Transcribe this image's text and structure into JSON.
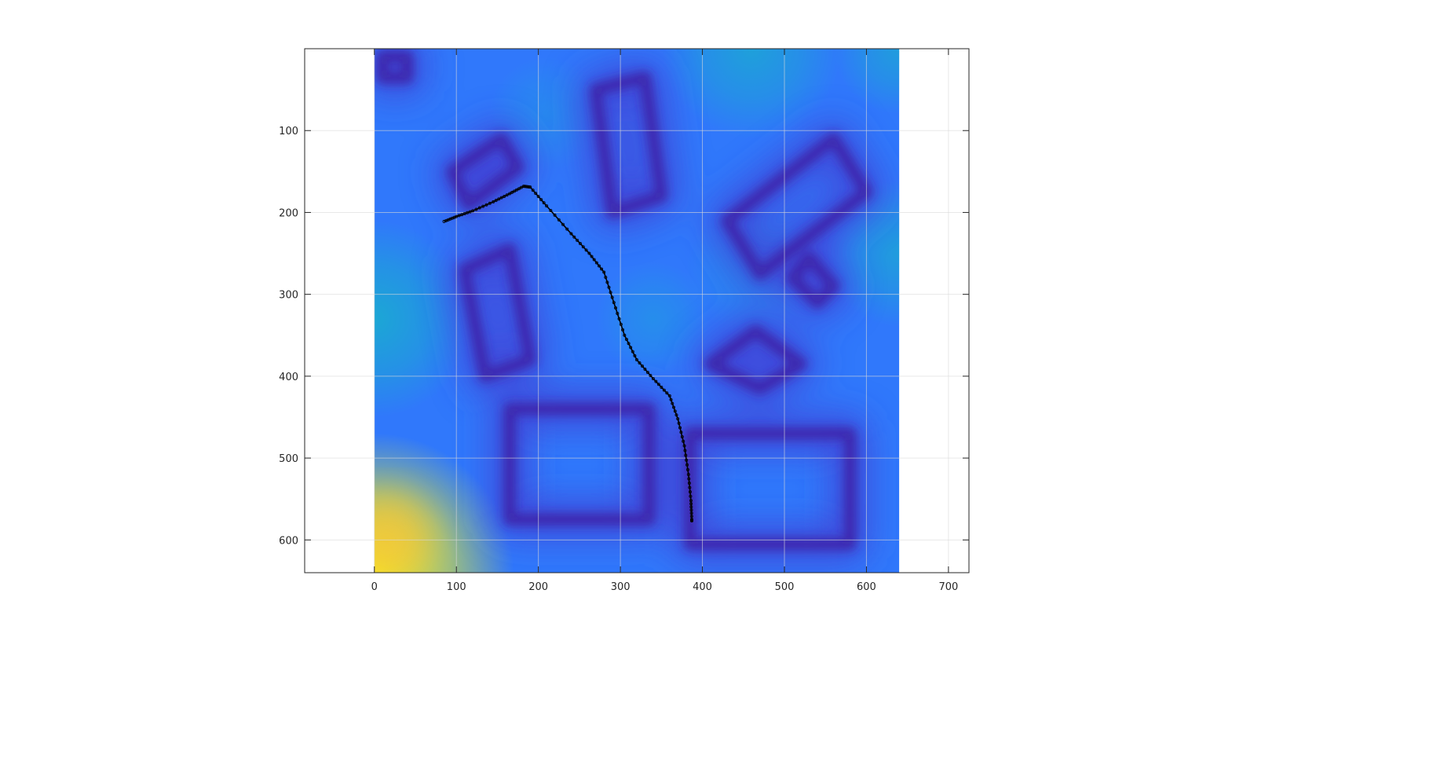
{
  "chart_data": {
    "type": "heatmap",
    "title": "",
    "xlabel": "",
    "ylabel": "",
    "xlim": [
      -85,
      725
    ],
    "ylim": [
      640,
      0
    ],
    "y_axis_reversed": true,
    "grid": true,
    "colormap": "parula",
    "colormap_stops": [
      "#3e26a8",
      "#4145d6",
      "#3078fb",
      "#1e9fe0",
      "#13bbc4",
      "#2ec39a",
      "#82c45a",
      "#d5b83d",
      "#fbc536",
      "#f9fb15"
    ],
    "image_extent": {
      "x": [
        0,
        640
      ],
      "y": [
        0,
        640
      ]
    },
    "x_ticks": [
      0,
      100,
      200,
      300,
      400,
      500,
      600,
      700
    ],
    "x_tick_labels": [
      "0",
      "100",
      "200",
      "300",
      "400",
      "500",
      "600",
      "700"
    ],
    "y_ticks": [
      100,
      200,
      300,
      400,
      500,
      600
    ],
    "y_tick_labels": [
      "100",
      "200",
      "300",
      "400",
      "500",
      "600"
    ],
    "obstacles": [
      {
        "points": [
          [
            95,
            150
          ],
          [
            155,
            110
          ],
          [
            175,
            145
          ],
          [
            115,
            190
          ]
        ]
      },
      {
        "points": [
          [
            110,
            270
          ],
          [
            165,
            245
          ],
          [
            190,
            380
          ],
          [
            135,
            400
          ]
        ]
      },
      {
        "points": [
          [
            270,
            50
          ],
          [
            330,
            35
          ],
          [
            350,
            180
          ],
          [
            290,
            200
          ]
        ]
      },
      {
        "points": [
          [
            430,
            210
          ],
          [
            560,
            110
          ],
          [
            600,
            175
          ],
          [
            470,
            275
          ]
        ]
      },
      {
        "points": [
          [
            410,
            385
          ],
          [
            465,
            345
          ],
          [
            520,
            385
          ],
          [
            470,
            415
          ]
        ]
      },
      {
        "points": [
          [
            165,
            440
          ],
          [
            335,
            440
          ],
          [
            335,
            575
          ],
          [
            165,
            575
          ]
        ]
      },
      {
        "points": [
          [
            385,
            470
          ],
          [
            580,
            470
          ],
          [
            580,
            605
          ],
          [
            385,
            605
          ]
        ]
      },
      {
        "points": [
          [
            530,
            255
          ],
          [
            560,
            290
          ],
          [
            540,
            310
          ],
          [
            510,
            280
          ]
        ]
      },
      {
        "points": [
          [
            10,
            10
          ],
          [
            40,
            10
          ],
          [
            40,
            35
          ],
          [
            10,
            35
          ]
        ]
      }
    ],
    "hot_spots": [
      {
        "x": 0,
        "y": 640,
        "radius": 170,
        "color": "#f9fb15",
        "opacity": 0.95
      },
      {
        "x": 0,
        "y": 330,
        "radius": 120,
        "color": "#13bbc4",
        "opacity": 0.7
      },
      {
        "x": 640,
        "y": 250,
        "radius": 90,
        "color": "#13bbc4",
        "opacity": 0.55
      },
      {
        "x": 460,
        "y": 0,
        "radius": 110,
        "color": "#13bbc4",
        "opacity": 0.6
      },
      {
        "x": 640,
        "y": 0,
        "radius": 80,
        "color": "#13bbc4",
        "opacity": 0.55
      },
      {
        "x": 340,
        "y": 330,
        "radius": 70,
        "color": "#1e9fe0",
        "opacity": 0.55
      },
      {
        "x": 210,
        "y": 80,
        "radius": 70,
        "color": "#1e9fe0",
        "opacity": 0.45
      },
      {
        "x": 460,
        "y": 270,
        "radius": 80,
        "color": "#1e9fe0",
        "opacity": 0.45
      }
    ],
    "path": {
      "name": "",
      "color": "#000000",
      "x": [
        85,
        100,
        120,
        145,
        165,
        182,
        190,
        210,
        240,
        262,
        280,
        292,
        305,
        320,
        340,
        360,
        370,
        378,
        383,
        386,
        387,
        387
      ],
      "y": [
        211,
        205,
        198,
        187,
        177,
        168,
        169,
        192,
        226,
        250,
        273,
        310,
        350,
        380,
        403,
        424,
        452,
        485,
        520,
        552,
        575,
        577
      ]
    }
  }
}
